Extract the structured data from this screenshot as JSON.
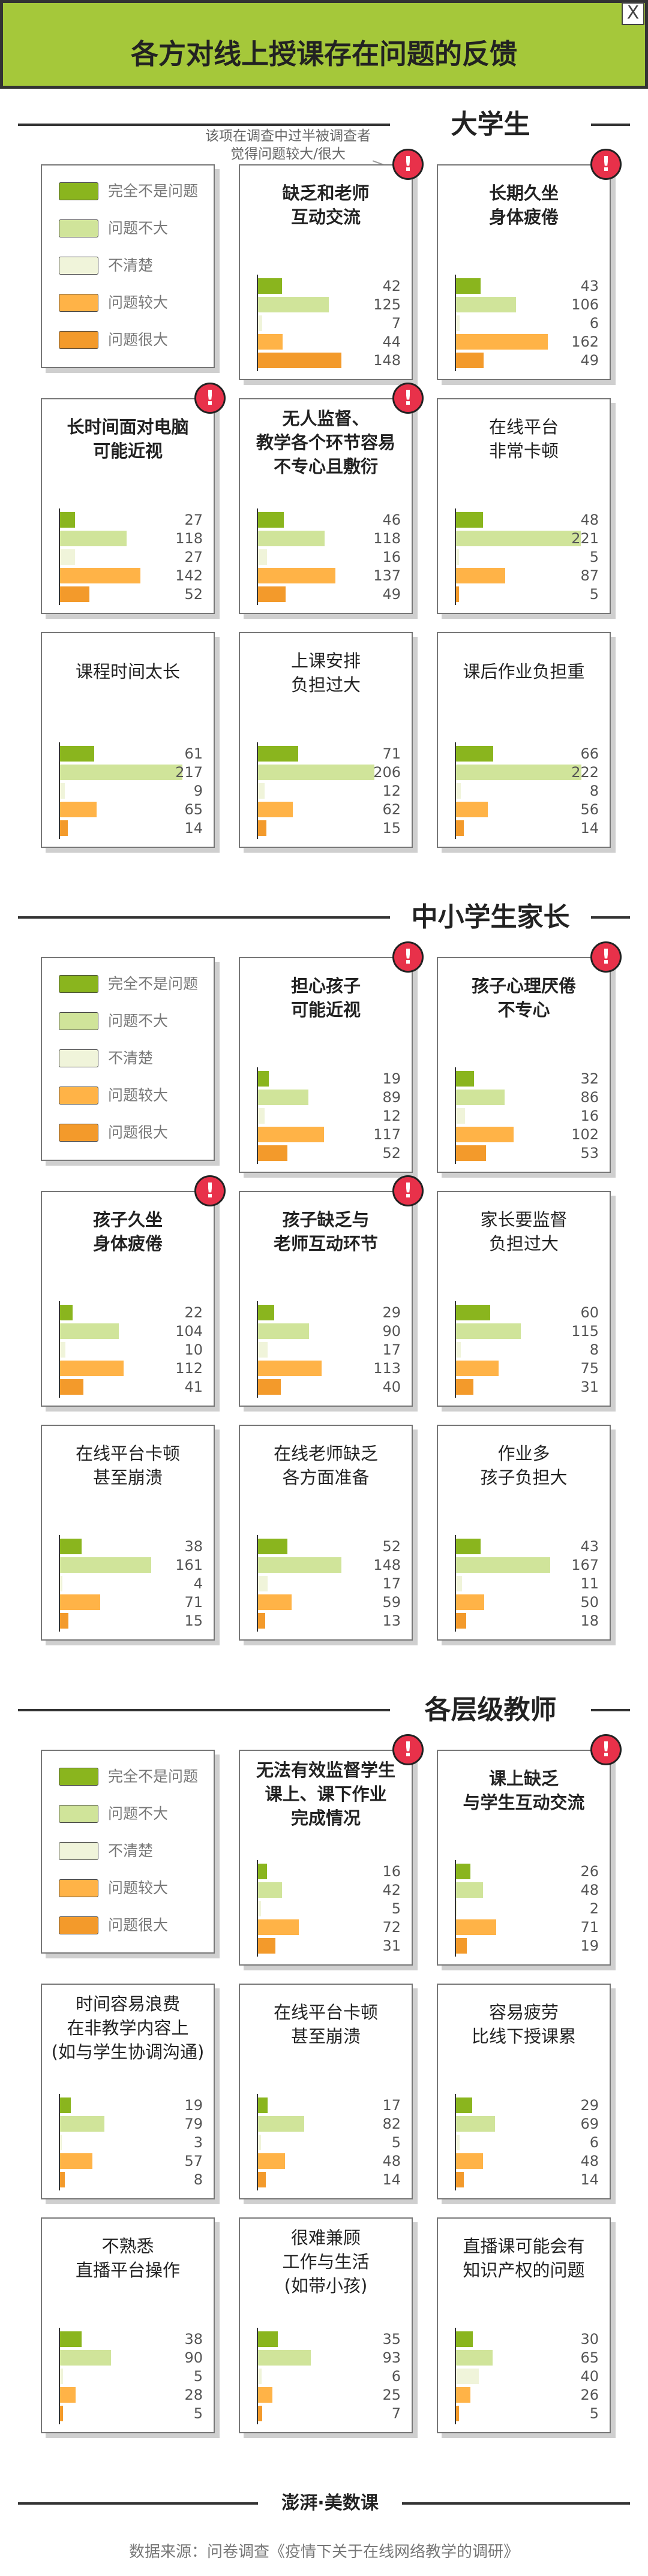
{
  "header": {
    "title": "各方对线上授课存在问题的反馈",
    "close_label": "X"
  },
  "colors": {
    "accent": "#a5c83a",
    "levels": [
      "#8ab51e",
      "#d0e49a",
      "#f0f4da",
      "#ffb347",
      "#f39a2b"
    ],
    "alert": "#e8314a"
  },
  "legend": [
    "完全不是问题",
    "问题不大",
    "不清楚",
    "问题较大",
    "问题很大"
  ],
  "annotation": "该项在调查中过半被调查者\n觉得问题较大/很大",
  "alert_icon": "!",
  "chart_data": {
    "type": "bar",
    "orientation": "horizontal",
    "series_names": [
      "完全不是问题",
      "问题不大",
      "不清楚",
      "问题较大",
      "问题很大"
    ],
    "xlim": [
      0,
      225
    ],
    "sections": [
      {
        "title": "大学生",
        "panels": [
          {
            "title": "缺乏和老师\n互动交流",
            "values": [
              42,
              125,
              7,
              44,
              148
            ],
            "flag": true
          },
          {
            "title": "长期久坐\n身体疲倦",
            "values": [
              43,
              106,
              6,
              162,
              49
            ],
            "flag": true
          },
          {
            "title": "长时间面对电脑\n可能近视",
            "values": [
              27,
              118,
              27,
              142,
              52
            ],
            "flag": true
          },
          {
            "title": "无人监督、\n教学各个环节容易\n不专心且敷衍",
            "values": [
              46,
              118,
              16,
              137,
              49
            ],
            "flag": true
          },
          {
            "title": "在线平台\n非常卡顿",
            "values": [
              48,
              221,
              5,
              87,
              5
            ],
            "flag": false
          },
          {
            "title": "课程时间太长",
            "values": [
              61,
              217,
              9,
              65,
              14
            ],
            "flag": false
          },
          {
            "title": "上课安排\n负担过大",
            "values": [
              71,
              206,
              12,
              62,
              15
            ],
            "flag": false
          },
          {
            "title": "课后作业负担重",
            "values": [
              66,
              222,
              8,
              56,
              14
            ],
            "flag": false
          }
        ]
      },
      {
        "title": "中小学生家长",
        "panels": [
          {
            "title": "担心孩子\n可能近视",
            "values": [
              19,
              89,
              12,
              117,
              52
            ],
            "flag": true
          },
          {
            "title": "孩子心理厌倦\n不专心",
            "values": [
              32,
              86,
              16,
              102,
              53
            ],
            "flag": true
          },
          {
            "title": "孩子久坐\n身体疲倦",
            "values": [
              22,
              104,
              10,
              112,
              41
            ],
            "flag": true
          },
          {
            "title": "孩子缺乏与\n老师互动环节",
            "values": [
              29,
              90,
              17,
              113,
              40
            ],
            "flag": true
          },
          {
            "title": "家长要监督\n负担过大",
            "values": [
              60,
              115,
              8,
              75,
              31
            ],
            "flag": false
          },
          {
            "title": "在线平台卡顿\n甚至崩溃",
            "values": [
              38,
              161,
              4,
              71,
              15
            ],
            "flag": false
          },
          {
            "title": "在线老师缺乏\n各方面准备",
            "values": [
              52,
              148,
              17,
              59,
              13
            ],
            "flag": false
          },
          {
            "title": "作业多\n孩子负担大",
            "values": [
              43,
              167,
              11,
              50,
              18
            ],
            "flag": false
          }
        ]
      },
      {
        "title": "各层级教师",
        "panels": [
          {
            "title": "无法有效监督学生\n课上、课下作业\n完成情况",
            "values": [
              16,
              42,
              5,
              72,
              31
            ],
            "flag": true
          },
          {
            "title": "课上缺乏\n与学生互动交流",
            "values": [
              26,
              48,
              2,
              71,
              19
            ],
            "flag": true
          },
          {
            "title": "时间容易浪费\n在非教学内容上\n(如与学生协调沟通)",
            "values": [
              19,
              79,
              3,
              57,
              8
            ],
            "flag": false
          },
          {
            "title": "在线平台卡顿\n甚至崩溃",
            "values": [
              17,
              82,
              5,
              48,
              14
            ],
            "flag": false
          },
          {
            "title": "容易疲劳\n比线下授课累",
            "values": [
              29,
              69,
              6,
              48,
              14
            ],
            "flag": false
          },
          {
            "title": "不熟悉\n直播平台操作",
            "values": [
              38,
              90,
              5,
              28,
              5
            ],
            "flag": false
          },
          {
            "title": "很难兼顾\n工作与生活\n(如带小孩)",
            "values": [
              35,
              93,
              6,
              25,
              7
            ],
            "flag": false
          },
          {
            "title": "直播课可能会有\n知识产权的问题",
            "values": [
              30,
              65,
              40,
              26,
              5
            ],
            "flag": false
          }
        ]
      }
    ]
  },
  "footer": {
    "logo": "澎湃·美数课",
    "source": "数据来源：问卷调查《疫情下关于在线网络教学的调研》"
  }
}
